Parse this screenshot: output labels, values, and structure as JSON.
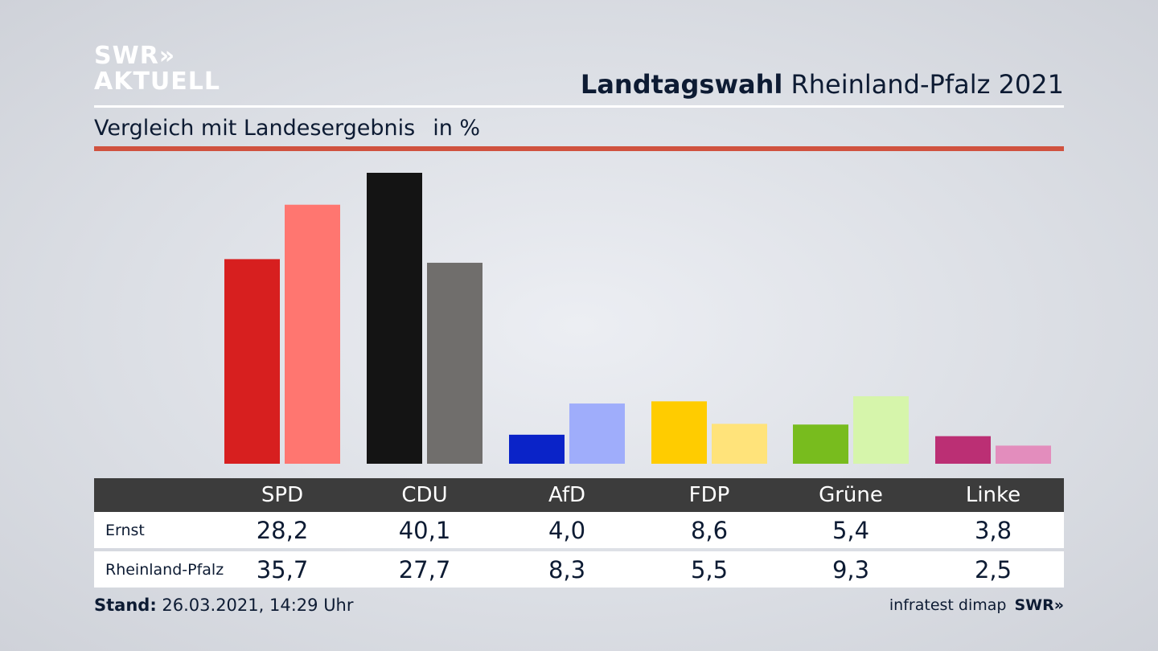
{
  "logo": {
    "line1": "SWR»",
    "line2": "AKTUELL"
  },
  "header": {
    "title_bold": "Landtagswahl",
    "title_rest": "Rheinland-Pfalz 2021",
    "subtitle": "Vergleich mit Landesergebnis",
    "unit": "in %"
  },
  "chart_data": {
    "type": "bar",
    "categories": [
      "SPD",
      "CDU",
      "AfD",
      "FDP",
      "Grüne",
      "Linke"
    ],
    "series": [
      {
        "name": "Ernst",
        "values": [
          28.2,
          40.1,
          4.0,
          8.6,
          5.4,
          3.8
        ],
        "colors": [
          "#d71f1f",
          "#141414",
          "#0a23c8",
          "#ffcc00",
          "#78bc1e",
          "#bb2f74"
        ]
      },
      {
        "name": "Rheinland-Pfalz",
        "values": [
          35.7,
          27.7,
          8.3,
          5.5,
          9.3,
          2.5
        ],
        "colors": [
          "#ff7670",
          "#706e6c",
          "#9fadfb",
          "#ffe37a",
          "#d6f5ab",
          "#e38dbd"
        ]
      }
    ],
    "ylim": [
      0,
      40.1
    ],
    "grid": false,
    "legend": "none"
  },
  "table": {
    "headers": [
      "SPD",
      "CDU",
      "AfD",
      "FDP",
      "Grüne",
      "Linke"
    ],
    "rows": [
      {
        "label": "Ernst",
        "values": [
          "28,2",
          "40,1",
          "4,0",
          "8,6",
          "5,4",
          "3,8"
        ]
      },
      {
        "label": "Rheinland-Pfalz",
        "values": [
          "35,7",
          "27,7",
          "8,3",
          "5,5",
          "9,3",
          "2,5"
        ]
      }
    ]
  },
  "footer": {
    "stand_label": "Stand:",
    "stand_value": "26.03.2021, 14:29 Uhr",
    "source": "infratest dimap",
    "brand": "SWR»"
  }
}
